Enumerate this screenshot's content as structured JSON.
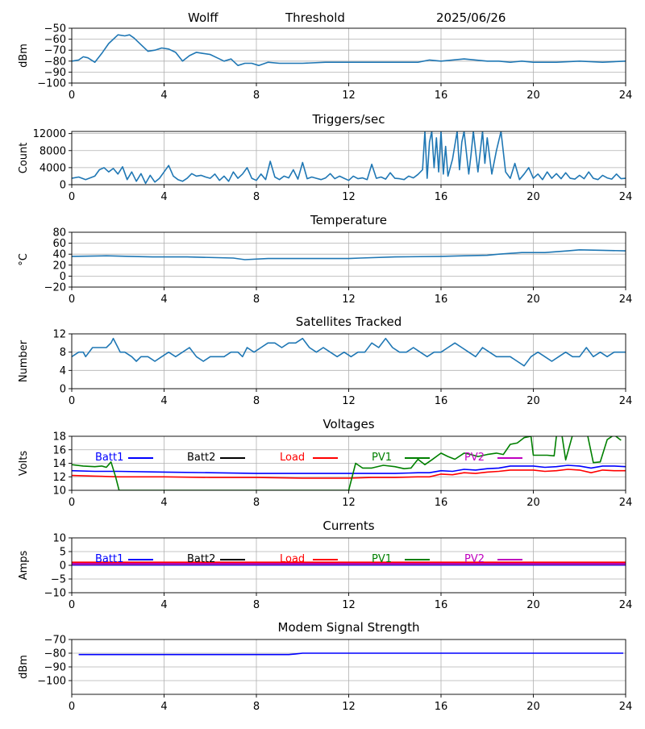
{
  "header": {
    "station": "Wolff",
    "mode": "Threshold",
    "date": "2025/06/26"
  },
  "chart_data": [
    {
      "id": "signal",
      "type": "line",
      "title": "",
      "ylabel": "dBm",
      "xlim": [
        0,
        24
      ],
      "ylim": [
        -100,
        -50
      ],
      "xticks": [
        0,
        4,
        8,
        12,
        16,
        20,
        24
      ],
      "yticks": [
        -100,
        -90,
        -80,
        -70,
        -60,
        -50
      ],
      "grid": true,
      "series": [
        {
          "color": "#1f77b4",
          "x": [
            0,
            0.3,
            0.5,
            0.7,
            1.0,
            1.3,
            1.6,
            2.0,
            2.3,
            2.5,
            2.7,
            3.0,
            3.3,
            3.6,
            3.9,
            4.2,
            4.5,
            4.8,
            5.1,
            5.4,
            5.7,
            6.0,
            6.3,
            6.6,
            6.9,
            7.2,
            7.5,
            7.8,
            8.1,
            8.5,
            9.0,
            10,
            11,
            12,
            13,
            14,
            15,
            15.5,
            16,
            16.5,
            17,
            17.5,
            18,
            18.5,
            19,
            19.5,
            20,
            21,
            22,
            23,
            24
          ],
          "y": [
            -80,
            -79,
            -76,
            -77,
            -81,
            -73,
            -64,
            -56,
            -57,
            -56,
            -59,
            -65,
            -71,
            -70,
            -68,
            -69,
            -72,
            -80,
            -75,
            -72,
            -73,
            -74,
            -77,
            -80,
            -78,
            -84,
            -82,
            -82,
            -84,
            -81,
            -82,
            -82,
            -81,
            -81,
            -81,
            -81,
            -81,
            -79,
            -80,
            -79,
            -78,
            -79,
            -80,
            -80,
            -81,
            -80,
            -81,
            -81,
            -80,
            -81,
            -80
          ]
        }
      ]
    },
    {
      "id": "triggers",
      "type": "line",
      "title": "Triggers/sec",
      "ylabel": "Count",
      "xlim": [
        0,
        24
      ],
      "ylim": [
        0,
        12500
      ],
      "xticks": [
        0,
        4,
        8,
        12,
        16,
        20,
        24
      ],
      "yticks": [
        0,
        4000,
        8000,
        12000
      ],
      "grid": true,
      "series": [
        {
          "color": "#1f77b4",
          "x": [
            0,
            0.3,
            0.6,
            1.0,
            1.2,
            1.4,
            1.6,
            1.8,
            2.0,
            2.2,
            2.4,
            2.6,
            2.8,
            3.0,
            3.2,
            3.4,
            3.6,
            3.8,
            4.0,
            4.2,
            4.4,
            4.6,
            4.8,
            5.0,
            5.2,
            5.4,
            5.6,
            5.8,
            6.0,
            6.2,
            6.4,
            6.6,
            6.8,
            7.0,
            7.2,
            7.4,
            7.6,
            7.8,
            8.0,
            8.2,
            8.4,
            8.6,
            8.8,
            9.0,
            9.2,
            9.4,
            9.6,
            9.8,
            10.0,
            10.2,
            10.4,
            10.6,
            10.8,
            11.0,
            11.2,
            11.4,
            11.6,
            11.8,
            12.0,
            12.2,
            12.4,
            12.6,
            12.8,
            13.0,
            13.2,
            13.4,
            13.6,
            13.8,
            14.0,
            14.2,
            14.4,
            14.6,
            14.8,
            15.0,
            15.2,
            15.3,
            15.4,
            15.5,
            15.6,
            15.7,
            15.8,
            15.9,
            16.0,
            16.1,
            16.2,
            16.3,
            16.5,
            16.7,
            16.8,
            16.9,
            17.0,
            17.2,
            17.3,
            17.4,
            17.6,
            17.8,
            17.9,
            18.0,
            18.2,
            18.4,
            18.6,
            18.8,
            19.0,
            19.2,
            19.4,
            19.6,
            19.8,
            20.0,
            20.2,
            20.4,
            20.6,
            20.8,
            21.0,
            21.2,
            21.4,
            21.6,
            21.8,
            22.0,
            22.2,
            22.4,
            22.6,
            22.8,
            23.0,
            23.2,
            23.4,
            23.6,
            23.8,
            24.0
          ],
          "y": [
            1500,
            1800,
            1200,
            2000,
            3500,
            4000,
            3000,
            3800,
            2500,
            4200,
            1200,
            3000,
            800,
            2600,
            300,
            2200,
            600,
            1500,
            3000,
            4500,
            2000,
            1200,
            800,
            1500,
            2600,
            2000,
            2200,
            1800,
            1500,
            2500,
            1000,
            2000,
            800,
            3000,
            1500,
            2500,
            4000,
            1500,
            1000,
            2500,
            1200,
            5500,
            1800,
            1200,
            2000,
            1600,
            3500,
            1300,
            5200,
            1400,
            1800,
            1500,
            1200,
            1600,
            2600,
            1400,
            2000,
            1500,
            1000,
            2000,
            1400,
            1600,
            1200,
            4800,
            1500,
            1800,
            1300,
            2800,
            1500,
            1400,
            1200,
            2000,
            1600,
            2400,
            3500,
            12500,
            1500,
            10000,
            12500,
            4000,
            11000,
            3000,
            12500,
            2500,
            9000,
            2000,
            6000,
            12500,
            3500,
            10000,
            12500,
            2500,
            7000,
            12500,
            3000,
            12500,
            5000,
            11000,
            2500,
            8000,
            12500,
            3000,
            1500,
            5000,
            1200,
            2500,
            4000,
            1500,
            2500,
            1200,
            3000,
            1500,
            2600,
            1400,
            2800,
            1500,
            1300,
            2200,
            1400,
            3000,
            1500,
            1200,
            2200,
            1600,
            1300,
            2500,
            1400,
            1500
          ]
        }
      ]
    },
    {
      "id": "temperature",
      "type": "line",
      "title": "Temperature",
      "ylabel": "°C",
      "xlim": [
        0,
        24
      ],
      "ylim": [
        -20,
        80
      ],
      "xticks": [
        0,
        4,
        8,
        12,
        16,
        20,
        24
      ],
      "yticks": [
        -20,
        0,
        20,
        40,
        60,
        80
      ],
      "grid": true,
      "series": [
        {
          "color": "#1f77b4",
          "x": [
            0,
            1.5,
            2.5,
            3.5,
            5,
            7,
            7.5,
            8.5,
            10,
            12,
            12.5,
            14,
            16,
            17,
            18,
            18.5,
            19.5,
            20.5,
            21.5,
            22,
            23,
            24
          ],
          "y": [
            36,
            37,
            36,
            35,
            35,
            33,
            30,
            32,
            32,
            32,
            33,
            35,
            36,
            37,
            38,
            40,
            43,
            43,
            46,
            48,
            47,
            46
          ]
        }
      ]
    },
    {
      "id": "satellites",
      "type": "line",
      "title": "Satellites Tracked",
      "ylabel": "Number",
      "xlim": [
        0,
        24
      ],
      "ylim": [
        0,
        12
      ],
      "xticks": [
        0,
        4,
        8,
        12,
        16,
        20,
        24
      ],
      "yticks": [
        0,
        4,
        8,
        12
      ],
      "grid": true,
      "series": [
        {
          "color": "#1f77b4",
          "x": [
            0,
            0.3,
            0.5,
            0.6,
            0.9,
            1.2,
            1.5,
            1.7,
            1.8,
            2.0,
            2.1,
            2.3,
            2.6,
            2.8,
            3.0,
            3.3,
            3.6,
            3.9,
            4.2,
            4.5,
            4.8,
            5.1,
            5.4,
            5.7,
            6.0,
            6.3,
            6.6,
            6.9,
            7.2,
            7.4,
            7.6,
            7.9,
            8.2,
            8.5,
            8.8,
            9.1,
            9.4,
            9.7,
            10.0,
            10.3,
            10.6,
            10.9,
            11.2,
            11.5,
            11.8,
            12.1,
            12.4,
            12.7,
            13.0,
            13.3,
            13.6,
            13.9,
            14.2,
            14.5,
            14.8,
            15.1,
            15.4,
            15.7,
            16.0,
            16.3,
            16.6,
            16.9,
            17.2,
            17.5,
            17.8,
            18.1,
            18.4,
            18.7,
            19.0,
            19.3,
            19.6,
            19.9,
            20.2,
            20.5,
            20.8,
            21.1,
            21.4,
            21.7,
            22.0,
            22.3,
            22.6,
            22.9,
            23.2,
            23.5,
            23.8,
            24.0
          ],
          "y": [
            7,
            8,
            8,
            7,
            9,
            9,
            9,
            10,
            11,
            9,
            8,
            8,
            7,
            6,
            7,
            7,
            6,
            7,
            8,
            7,
            8,
            9,
            7,
            6,
            7,
            7,
            7,
            8,
            8,
            7,
            9,
            8,
            9,
            10,
            10,
            9,
            10,
            10,
            11,
            9,
            8,
            9,
            8,
            7,
            8,
            7,
            8,
            8,
            10,
            9,
            11,
            9,
            8,
            8,
            9,
            8,
            7,
            8,
            8,
            9,
            10,
            9,
            8,
            7,
            9,
            8,
            7,
            7,
            7,
            6,
            5,
            7,
            8,
            7,
            6,
            7,
            8,
            7,
            7,
            9,
            7,
            8,
            7,
            8,
            8,
            8
          ]
        }
      ]
    },
    {
      "id": "voltages",
      "type": "line",
      "title": "Voltages",
      "ylabel": "Volts",
      "xlim": [
        0,
        24
      ],
      "ylim": [
        10,
        18
      ],
      "xticks": [
        0,
        4,
        8,
        12,
        16,
        20,
        24
      ],
      "yticks": [
        10,
        12,
        14,
        16,
        18
      ],
      "grid": true,
      "series": [
        {
          "name": "Batt1",
          "color": "#0000ff",
          "x": [
            0,
            1,
            2,
            4,
            6,
            8,
            10,
            12,
            13,
            14,
            15,
            15.5,
            16,
            16.5,
            17,
            17.5,
            18,
            18.5,
            19,
            20,
            20.5,
            21,
            21.5,
            22,
            22.5,
            23,
            23.5,
            24
          ],
          "y": [
            12.9,
            12.8,
            12.8,
            12.7,
            12.6,
            12.5,
            12.5,
            12.5,
            12.5,
            12.5,
            12.6,
            12.6,
            12.9,
            12.8,
            13.1,
            13.0,
            13.2,
            13.3,
            13.6,
            13.6,
            13.4,
            13.5,
            13.7,
            13.6,
            13.3,
            13.6,
            13.6,
            13.5
          ]
        },
        {
          "name": "Batt2",
          "color": "#000000",
          "x": [],
          "y": []
        },
        {
          "name": "Load",
          "color": "#ff0000",
          "x": [
            0,
            1,
            2,
            4,
            6,
            8,
            10,
            12,
            13,
            14,
            15,
            15.5,
            16,
            16.5,
            17,
            17.5,
            18,
            18.5,
            19,
            20,
            20.5,
            21,
            21.5,
            22,
            22.5,
            23,
            23.5,
            24
          ],
          "y": [
            12.2,
            12.1,
            12.0,
            12.0,
            11.9,
            11.9,
            11.8,
            11.8,
            11.9,
            11.9,
            12.0,
            12.0,
            12.4,
            12.3,
            12.6,
            12.5,
            12.7,
            12.8,
            13.0,
            13.0,
            12.8,
            12.9,
            13.1,
            13.0,
            12.6,
            13.0,
            12.9,
            12.9
          ]
        },
        {
          "name": "PV1",
          "color": "#008000",
          "x": [
            0,
            0.5,
            1.0,
            1.3,
            1.5,
            1.7,
            1.9,
            2.05,
            12.0,
            12.3,
            12.6,
            13.0,
            13.5,
            14.0,
            14.4,
            14.7,
            15.0,
            15.3,
            15.6,
            16.0,
            16.3,
            16.6,
            17.0,
            17.3,
            17.6,
            18.0,
            18.4,
            18.7,
            19.0,
            19.3,
            19.6,
            19.9,
            20.0,
            20.3,
            20.6,
            20.9,
            21.0,
            21.2,
            21.4,
            21.7,
            22.0,
            22.3,
            22.6,
            22.9,
            23.2,
            23.5,
            23.8
          ],
          "y": [
            13.8,
            13.6,
            13.5,
            13.6,
            13.4,
            14.2,
            12.0,
            10.0,
            10.0,
            14.0,
            13.3,
            13.3,
            13.7,
            13.5,
            13.2,
            13.3,
            14.6,
            13.8,
            14.5,
            15.5,
            15.0,
            14.6,
            15.5,
            15.3,
            15.0,
            15.3,
            15.5,
            15.3,
            16.8,
            17.0,
            17.8,
            18.0,
            15.2,
            15.2,
            15.2,
            15.1,
            18.0,
            19.0,
            14.5,
            18.2,
            18.1,
            19.0,
            14.1,
            14.2,
            17.5,
            18.2,
            17.4
          ]
        },
        {
          "name": "PV2",
          "color": "#bf00bf",
          "x": [],
          "y": []
        }
      ]
    },
    {
      "id": "currents",
      "type": "line",
      "title": "Currents",
      "ylabel": "Amps",
      "xlim": [
        0,
        24
      ],
      "ylim": [
        -10,
        10
      ],
      "xticks": [
        0,
        4,
        8,
        12,
        16,
        20,
        24
      ],
      "yticks": [
        -10,
        -5,
        0,
        5,
        10
      ],
      "grid": true,
      "series": [
        {
          "name": "Batt1",
          "color": "#0000ff",
          "x": [
            0,
            24
          ],
          "y": [
            0.2,
            0.2
          ]
        },
        {
          "name": "Batt2",
          "color": "#000000",
          "x": [
            0,
            24
          ],
          "y": [
            0.6,
            0.6
          ]
        },
        {
          "name": "Load",
          "color": "#ff0000",
          "x": [
            0,
            24
          ],
          "y": [
            1.0,
            1.0
          ]
        },
        {
          "name": "PV1",
          "color": "#008000",
          "x": [
            0,
            24
          ],
          "y": [
            0.4,
            0.4
          ]
        },
        {
          "name": "PV2",
          "color": "#bf00bf",
          "x": [
            0,
            24
          ],
          "y": [
            0.5,
            0.5
          ]
        }
      ]
    },
    {
      "id": "modem",
      "type": "line",
      "title": "Modem Signal Strength",
      "ylabel": "dBm",
      "xlim": [
        0,
        24
      ],
      "ylim": [
        -110,
        -70
      ],
      "xticks": [
        0,
        4,
        8,
        12,
        16,
        20,
        24
      ],
      "yticks": [
        -100,
        -90,
        -80,
        -70
      ],
      "grid": true,
      "series": [
        {
          "color": "#0000ff",
          "x": [
            0.3,
            4,
            8,
            9.4,
            9.7,
            10,
            12,
            16,
            20,
            23.9
          ],
          "y": [
            -81,
            -81,
            -81,
            -81,
            -80.5,
            -80,
            -80,
            -80,
            -80,
            -80
          ]
        }
      ]
    }
  ]
}
